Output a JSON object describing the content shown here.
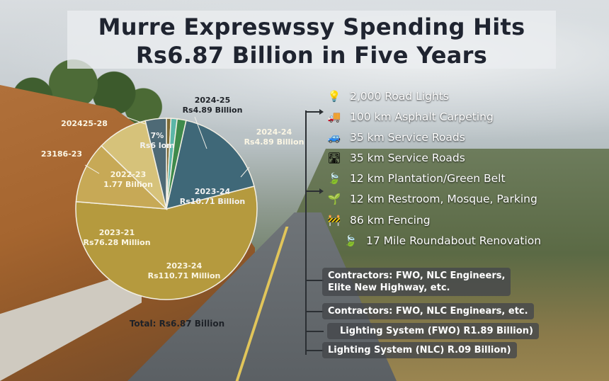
{
  "title": {
    "line1": "Murre Expreswssy Spending Hits",
    "line2": "Rs6.87 Billion in Five Years"
  },
  "pie": {
    "slices": [
      {
        "label1": "2023-24",
        "label2": "Rs110.71 Million",
        "value": 110.71,
        "color": "#b59a3e"
      },
      {
        "label1": "2023-24",
        "label2": "Rs10.71 Billion",
        "value": 35.0,
        "color": "#3f6878"
      },
      {
        "label1": "",
        "label2": "",
        "value": 3.2,
        "color": "#3f8a4c"
      },
      {
        "label1": "",
        "label2": "",
        "value": 2.2,
        "color": "#5bb6a8"
      },
      {
        "label1": "7%",
        "label2": "Rs6 lom",
        "value": 7.5,
        "color": "#4e6a76"
      },
      {
        "label1": "",
        "label2": "",
        "value": 1.6,
        "color": "#7d6a36"
      },
      {
        "label1": "2022-23",
        "label2": "1.77 Billion",
        "value": 18.0,
        "color": "#d6c27a"
      },
      {
        "label1": "2023-21",
        "label2": "Rs76.28 Million",
        "value": 22.0,
        "color": "#c7a956"
      }
    ],
    "outer_labels": [
      {
        "line1": "2024-25",
        "line2": "Rs4.89 Billion"
      },
      {
        "line1": "2024-24",
        "line2": "Rs4.89 Billion"
      },
      {
        "line1": "202425-28",
        "line2": ""
      },
      {
        "line1": "23186-23",
        "line2": ""
      }
    ],
    "total": "Total: Rs6.87 Billion"
  },
  "features": [
    {
      "icon": "lightbulb-icon",
      "glyph": "💡",
      "text": "2,000 Road Lights"
    },
    {
      "icon": "truck-icon",
      "glyph": "🚚",
      "text": "100 km Asphalt Carpeting"
    },
    {
      "icon": "car-icon",
      "glyph": "🚙",
      "text": "35 km Service Roads"
    },
    {
      "icon": "road-icon",
      "glyph": "🛣",
      "text": "35 km Service Roads"
    },
    {
      "icon": "leaf-icon",
      "glyph": "🍃",
      "text": "12 km Plantation/Green Belt"
    },
    {
      "icon": "sprout-icon",
      "glyph": "🌱",
      "text": "12 km Restroom, Mosque, Parking"
    },
    {
      "icon": "fence-icon",
      "glyph": "🚧",
      "text": "86 km Fencing"
    },
    {
      "icon": "leaf-icon",
      "glyph": "🍃",
      "text": "17 Mile Roundabout Renovation"
    }
  ],
  "boxes": [
    {
      "line1": "Contractors: FWO, NLC Engineers,",
      "line2": "Elite New Highway, etc."
    },
    {
      "line1": "Contractors: FWO, NLC Enginears, etc.",
      "line2": ""
    },
    {
      "line1": "Lighting System (FWO) R1.89 Billion)",
      "line2": ""
    },
    {
      "line1": "Lighting System (NLC) R.09 Billion)",
      "line2": ""
    }
  ]
}
